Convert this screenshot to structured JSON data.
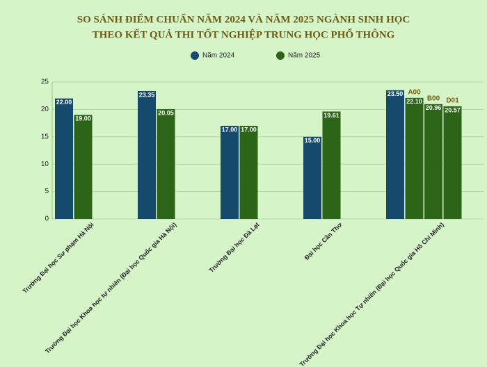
{
  "chart_data": {
    "type": "bar",
    "title": [
      "SO SÁNH ĐIỂM CHUẨN NĂM 2024 VÀ NĂM 2025 NGÀNH SINH HỌC",
      "THEO KẾT QUẢ THI TỐT NGHIỆP TRUNG HỌC PHỔ THÔNG"
    ],
    "categories": [
      "Trường Đại học Sư phạm Hà Nội",
      "Trường Đại học Khoa học tự nhiên (Đại học Quốc gia Hà Nội)",
      "Trường Đại học Đà Lạt",
      "Đại học Cần Thơ",
      "Trường Đại học Khoa học Tự nhiên (Đại học Quốc gia Hồ Chí Minh)"
    ],
    "series": [
      {
        "name": "Năm 2024",
        "color": "#164a6c",
        "values": [
          22,
          23.35,
          17,
          15,
          23.5
        ],
        "value_labels": [
          "22.00",
          "23.35",
          "17.00",
          "15.00",
          "23.50"
        ]
      },
      {
        "name": "Năm 2025",
        "color": "#2c6418",
        "values": [
          19,
          20.05,
          17,
          19.61,
          null
        ],
        "value_labels": [
          "19.00",
          "20.05",
          "17.00",
          "19.61",
          null
        ],
        "blocks": {
          "labels": [
            "A00",
            "B00",
            "D01"
          ],
          "values": [
            22.1,
            20.96,
            20.57
          ],
          "value_labels": [
            "22.10",
            "20.96",
            "20.57"
          ]
        }
      }
    ],
    "ylim": [
      0,
      25
    ],
    "yticks": [
      0,
      5,
      10,
      15,
      20,
      25
    ],
    "grid": true
  }
}
